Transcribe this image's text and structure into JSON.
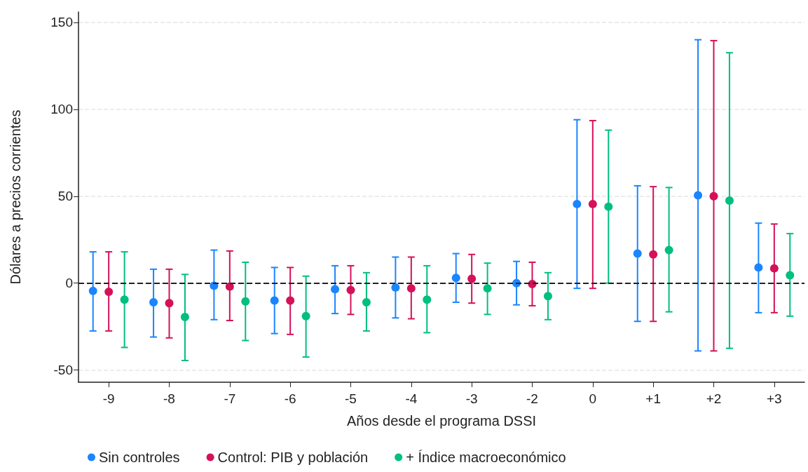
{
  "chart_data": {
    "type": "scatter",
    "xlabel": "Años desde el programa DSSI",
    "ylabel": "Dólares a precios corrientes",
    "categories": [
      "-9",
      "-8",
      "-7",
      "-6",
      "-5",
      "-4",
      "-3",
      "-2",
      "0",
      "+1",
      "+2",
      "+3"
    ],
    "series": [
      {
        "name": "Sin controles",
        "color": "#1a85ff",
        "values": [
          -4.5,
          -11,
          -1.5,
          -10,
          -3.5,
          -2.5,
          3,
          0,
          45.5,
          17,
          50.5,
          9
        ],
        "errors": [
          [
            -27.5,
            18
          ],
          [
            -31,
            8
          ],
          [
            -21,
            19
          ],
          [
            -29,
            9
          ],
          [
            -17.5,
            10
          ],
          [
            -20,
            15
          ],
          [
            -11,
            17
          ],
          [
            -12.5,
            12.5
          ],
          [
            -3,
            94
          ],
          [
            -22,
            56
          ],
          [
            -39,
            140
          ],
          [
            -17,
            34.5
          ]
        ]
      },
      {
        "name": "Control: PIB y población",
        "color": "#d41159",
        "values": [
          -5,
          -11.5,
          -2,
          -10,
          -4,
          -3,
          2.5,
          -0.5,
          45.5,
          16.5,
          50,
          8.5
        ],
        "errors": [
          [
            -27.5,
            18
          ],
          [
            -31.5,
            8
          ],
          [
            -21.5,
            18.5
          ],
          [
            -29.5,
            9
          ],
          [
            -18,
            10
          ],
          [
            -20.5,
            15
          ],
          [
            -11.5,
            16.5
          ],
          [
            -13,
            12
          ],
          [
            -3,
            93.5
          ],
          [
            -22,
            55.5
          ],
          [
            -39,
            139.5
          ],
          [
            -17,
            34
          ]
        ]
      },
      {
        "name": "+ Índice macroeconómico",
        "color": "#00bf7f",
        "values": [
          -9.5,
          -19.5,
          -10.5,
          -19,
          -11,
          -9.5,
          -3,
          -7.5,
          44,
          19,
          47.5,
          4.5
        ],
        "errors": [
          [
            -37,
            18
          ],
          [
            -44.5,
            5
          ],
          [
            -33,
            12
          ],
          [
            -42.5,
            4
          ],
          [
            -27.5,
            6
          ],
          [
            -28.5,
            10
          ],
          [
            -18,
            11.5
          ],
          [
            -21,
            6
          ],
          [
            0,
            88
          ],
          [
            -16.5,
            55
          ],
          [
            -37.5,
            132.5
          ],
          [
            -19,
            28.5
          ]
        ]
      }
    ],
    "ylim": [
      -57,
      156
    ],
    "yticks": [
      -50,
      0,
      50,
      100,
      150
    ],
    "grid": "y",
    "legend": "bottom",
    "marker": "circle",
    "ref_lines": [
      {
        "axis": "y",
        "value": 0,
        "color": "#222222",
        "line_style": "dashed"
      }
    ]
  }
}
